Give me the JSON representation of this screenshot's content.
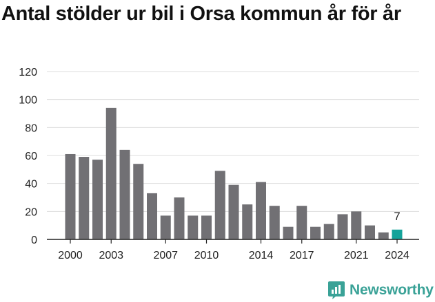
{
  "title": "Antal stölder ur bil i Orsa kommun år för år",
  "brand": {
    "name": "Newsworthy",
    "icon": "newsworthy-logo-icon",
    "color": "#3aa297"
  },
  "colors": {
    "bar": "#717074",
    "highlight": "#15a39a",
    "grid": "#dddddd",
    "axis": "#222222"
  },
  "chart_data": {
    "type": "bar",
    "title": "Antal stölder ur bil i Orsa kommun år för år",
    "xlabel": "",
    "ylabel": "",
    "categories": [
      2000,
      2001,
      2002,
      2003,
      2004,
      2005,
      2006,
      2007,
      2008,
      2009,
      2010,
      2011,
      2012,
      2013,
      2014,
      2015,
      2016,
      2017,
      2018,
      2019,
      2020,
      2021,
      2022,
      2023,
      2024
    ],
    "values": [
      61,
      59,
      57,
      94,
      64,
      54,
      33,
      17,
      30,
      17,
      17,
      49,
      39,
      25,
      41,
      24,
      9,
      24,
      9,
      11,
      18,
      20,
      10,
      5,
      7
    ],
    "x_tick_labels": [
      "2000",
      "2003",
      "2007",
      "2010",
      "2014",
      "2017",
      "2021",
      "2024"
    ],
    "y_ticks": [
      0,
      20,
      40,
      60,
      80,
      100,
      120
    ],
    "ylim": [
      0,
      120
    ],
    "grid": true,
    "highlight": {
      "category": 2024,
      "label": "7"
    }
  }
}
